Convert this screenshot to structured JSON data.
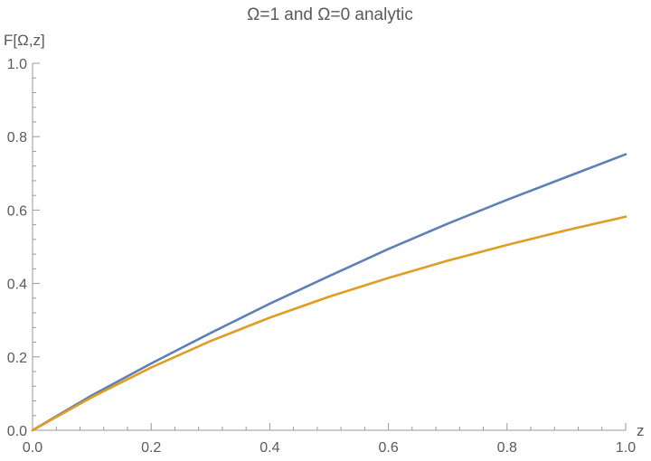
{
  "chart_data": {
    "type": "line",
    "title": "Ω=1 and Ω=0 analytic",
    "xlabel": "z",
    "ylabel": "F[Ω,z]",
    "xlim": [
      0,
      1
    ],
    "ylim": [
      0,
      1
    ],
    "x_ticks": [
      "0.0",
      "0.2",
      "0.4",
      "0.6",
      "0.8",
      "1.0"
    ],
    "y_ticks": [
      "0.0",
      "0.2",
      "0.4",
      "0.6",
      "0.8",
      "1.0"
    ],
    "grid": false,
    "legend": "none",
    "series": [
      {
        "color": "#5e81b5",
        "x": [
          0.0,
          0.1,
          0.2,
          0.3,
          0.4,
          0.5,
          0.6,
          0.7,
          0.8,
          0.9,
          1.0
        ],
        "y": [
          0.0,
          0.095,
          0.182,
          0.265,
          0.345,
          0.42,
          0.494,
          0.563,
          0.628,
          0.69,
          0.752
        ]
      },
      {
        "color": "#e19c24",
        "x": [
          0.0,
          0.1,
          0.2,
          0.3,
          0.4,
          0.5,
          0.6,
          0.7,
          0.8,
          0.9,
          1.0
        ],
        "y": [
          0.0,
          0.09,
          0.171,
          0.243,
          0.307,
          0.364,
          0.415,
          0.462,
          0.505,
          0.545,
          0.582
        ]
      }
    ]
  }
}
